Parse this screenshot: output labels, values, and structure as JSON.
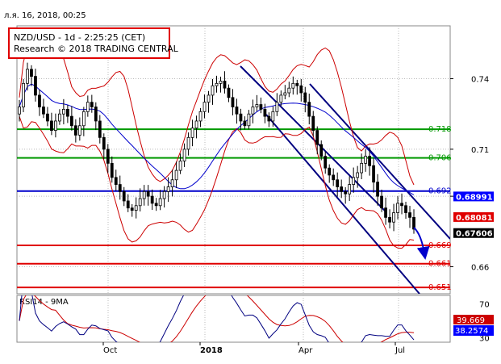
{
  "header": {
    "timestamp": "л.я. 16, 2018, 00:25"
  },
  "title_box": {
    "line1": "NZD/USD - 1d - 2:25:25 (CET)",
    "line2": "Research © 2018 TRADING CENTRAL"
  },
  "colors": {
    "support": "#e00000",
    "resistance": "#009900",
    "pivot": "#0000cc",
    "channel": "#000080",
    "bands": "#cc0000",
    "ma": "#0000cc",
    "candle": "#000000",
    "rsi": "#000080",
    "rsi_ma": "#cc0000",
    "grid": "#bbbbbb",
    "price_box": "#0000ff",
    "last_price_box": "#000000",
    "arrow": "#0000cc"
  },
  "chart_data": [
    {
      "type": "candlestick",
      "title": "NZD/USD - 1d - 2:25:25 (CET)",
      "x_labels": [
        "Oct",
        "2018",
        "Apr",
        "Jul"
      ],
      "y_ticks": [
        0.74,
        0.71,
        0.69,
        0.66
      ],
      "y_tick_labels": [
        "0.74",
        "0.71",
        "0.69",
        "0.66"
      ],
      "ylim": [
        0.6485,
        0.7625
      ],
      "grid": true,
      "close_series": [
        0.728,
        0.738,
        0.744,
        0.741,
        0.733,
        0.728,
        0.725,
        0.722,
        0.718,
        0.722,
        0.725,
        0.727,
        0.724,
        0.72,
        0.716,
        0.72,
        0.726,
        0.73,
        0.728,
        0.722,
        0.715,
        0.71,
        0.704,
        0.698,
        0.695,
        0.692,
        0.688,
        0.685,
        0.684,
        0.686,
        0.689,
        0.692,
        0.69,
        0.687,
        0.686,
        0.689,
        0.692,
        0.694,
        0.697,
        0.701,
        0.705,
        0.71,
        0.715,
        0.719,
        0.722,
        0.726,
        0.73,
        0.733,
        0.737,
        0.738,
        0.739,
        0.736,
        0.732,
        0.728,
        0.725,
        0.722,
        0.72,
        0.725,
        0.728,
        0.729,
        0.727,
        0.724,
        0.722,
        0.726,
        0.73,
        0.733,
        0.734,
        0.736,
        0.738,
        0.737,
        0.734,
        0.73,
        0.724,
        0.718,
        0.712,
        0.707,
        0.702,
        0.699,
        0.697,
        0.694,
        0.692,
        0.691,
        0.695,
        0.698,
        0.7,
        0.704,
        0.707,
        0.703,
        0.696,
        0.69,
        0.685,
        0.681,
        0.679,
        0.683,
        0.687,
        0.686,
        0.683,
        0.681,
        0.676
      ],
      "lines": [
        {
          "label": "0.718",
          "value": 0.7185,
          "kind": "resistance"
        },
        {
          "label": "0.706",
          "value": 0.7063,
          "kind": "resistance"
        },
        {
          "label": "0.692",
          "value": 0.6922,
          "kind": "pivot"
        },
        {
          "label": "0.669",
          "value": 0.6691,
          "kind": "support"
        },
        {
          "label": "0.661",
          "value": 0.6613,
          "kind": "support"
        },
        {
          "label": "0.651",
          "value": 0.6512,
          "kind": "support"
        }
      ],
      "price_boxes": [
        {
          "label": "0.68991",
          "value": 0.68991
        },
        {
          "label": "0.68081",
          "value": 0.68081
        },
        {
          "label": "0.67606",
          "value": 0.67606
        }
      ]
    },
    {
      "type": "line",
      "title": "RSI14 - 9MA",
      "y_ticks": [
        70,
        30
      ],
      "y_tick_labels": [
        "70",
        "30"
      ],
      "ylim": [
        25,
        80
      ],
      "rsi_ma_label": "39.669",
      "rsi_label": "38.2574"
    }
  ]
}
